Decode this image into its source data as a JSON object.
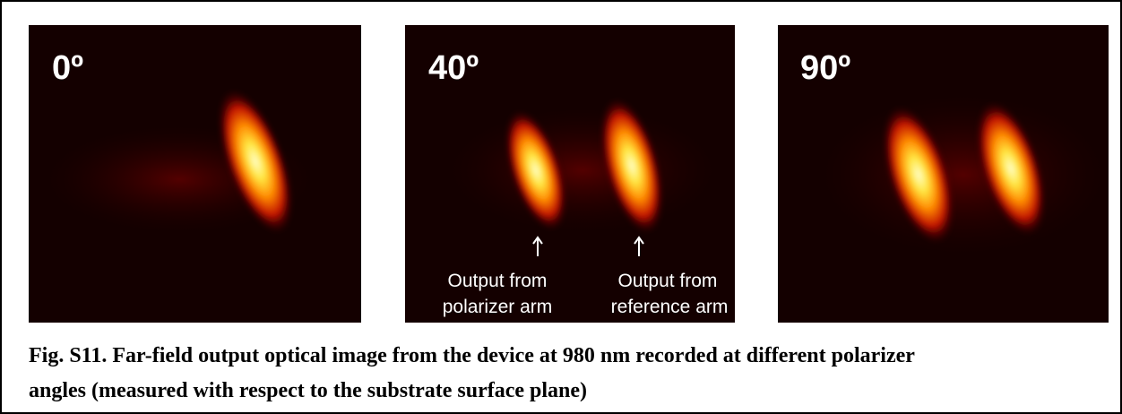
{
  "panels": [
    {
      "label": "0º"
    },
    {
      "label": "40º",
      "annotations": [
        {
          "lines": [
            "Output from",
            "polarizer arm"
          ]
        },
        {
          "lines": [
            "Output from",
            "reference arm"
          ]
        }
      ]
    },
    {
      "label": "90º"
    }
  ],
  "caption": {
    "lines": [
      "Fig. S11. Far-field output optical image from the device at 980 nm recorded at different polarizer",
      "angles (measured with respect to the substrate surface plane)"
    ]
  }
}
